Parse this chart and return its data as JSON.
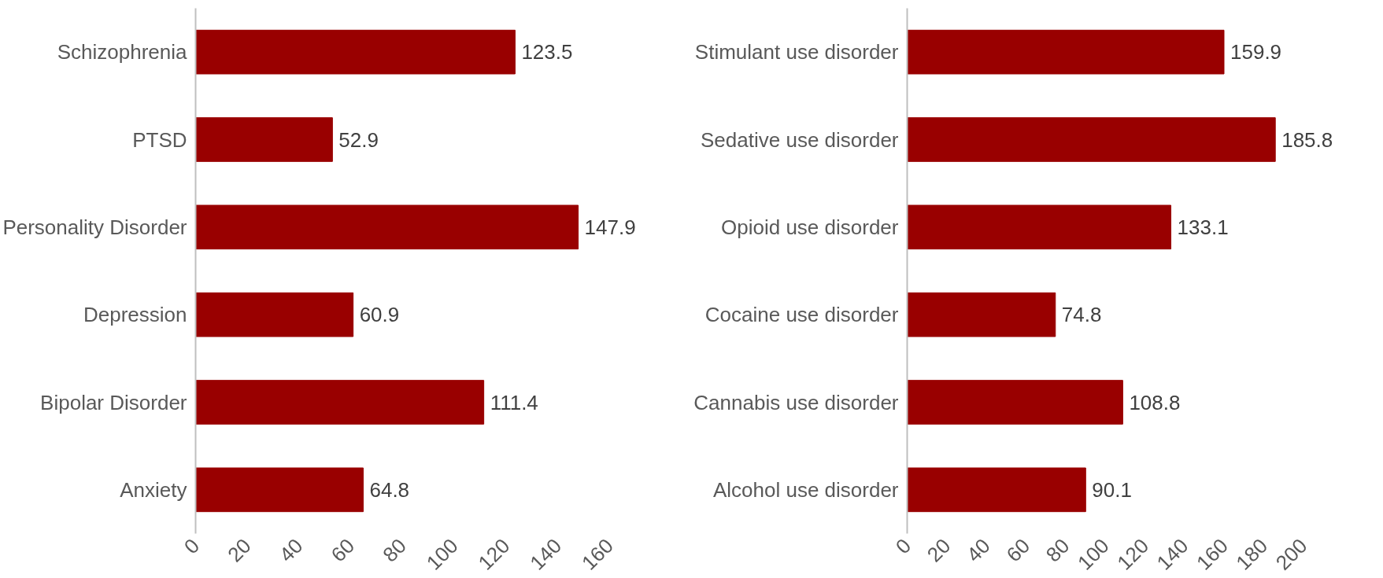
{
  "chart_data": [
    {
      "type": "bar",
      "orientation": "horizontal",
      "categories": [
        "Schizophrenia",
        "PTSD",
        "Personality Disorder",
        "Depression",
        "Bipolar Disorder",
        "Anxiety"
      ],
      "values": [
        123.5,
        52.9,
        147.9,
        60.9,
        111.4,
        64.8
      ],
      "color": "#990000",
      "xlim": [
        0,
        160
      ],
      "xticks": [
        0,
        20,
        40,
        60,
        80,
        100,
        120,
        140,
        160
      ],
      "data_labels": true,
      "grid": false
    },
    {
      "type": "bar",
      "orientation": "horizontal",
      "categories": [
        "Stimulant use disorder",
        "Sedative use disorder",
        "Opioid use disorder",
        "Cocaine use disorder",
        "Cannabis use disorder",
        "Alcohol use disorder"
      ],
      "values": [
        159.9,
        185.8,
        133.1,
        74.8,
        108.8,
        90.1
      ],
      "color": "#990000",
      "xlim": [
        0,
        200
      ],
      "xticks": [
        0,
        20,
        40,
        60,
        80,
        100,
        120,
        140,
        160,
        180,
        200
      ],
      "data_labels": true,
      "grid": false
    }
  ]
}
